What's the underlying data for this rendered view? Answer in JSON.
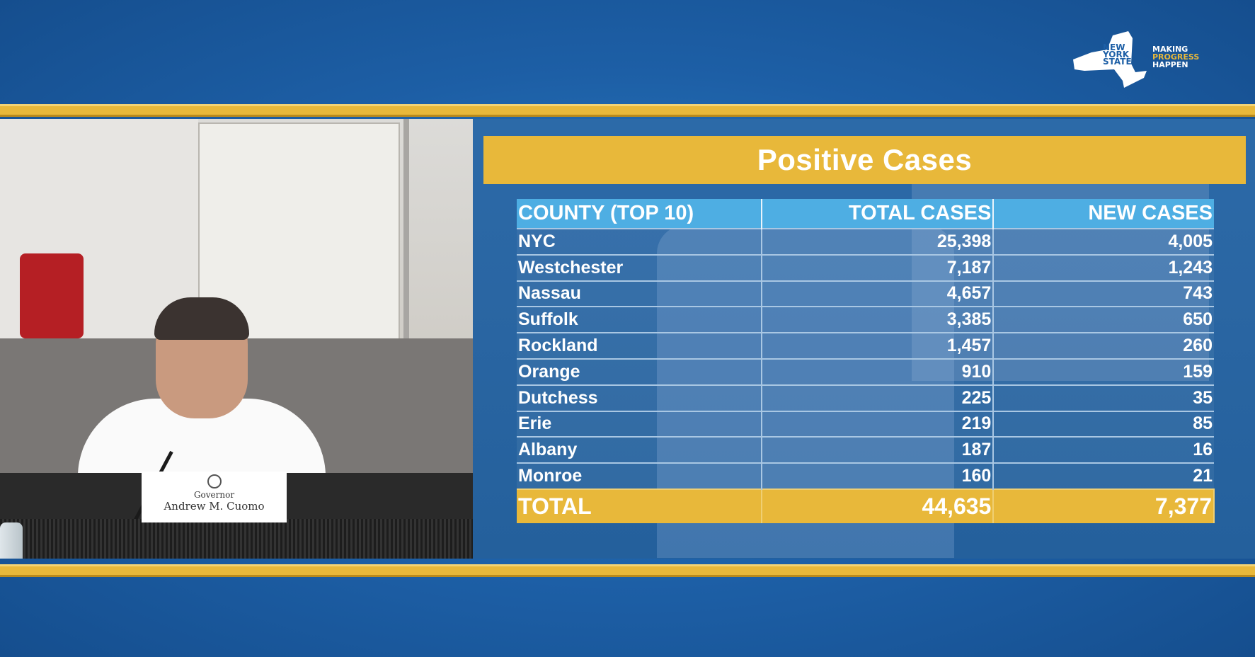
{
  "logo": {
    "state_lines": [
      "NEW",
      "YORK",
      "STATE"
    ],
    "tagline": [
      "MAKING",
      "PROGRESS",
      "HAPPEN"
    ]
  },
  "nameplate": {
    "title": "Governor",
    "name": "Andrew M. Cuomo"
  },
  "slide": {
    "title": "Positive Cases",
    "headers": [
      "COUNTY (TOP 10)",
      "TOTAL CASES",
      "NEW CASES"
    ],
    "rows": [
      {
        "county": "NYC",
        "total": "25,398",
        "new": "4,005"
      },
      {
        "county": "Westchester",
        "total": "7,187",
        "new": "1,243"
      },
      {
        "county": "Nassau",
        "total": "4,657",
        "new": "743"
      },
      {
        "county": "Suffolk",
        "total": "3,385",
        "new": "650"
      },
      {
        "county": "Rockland",
        "total": "1,457",
        "new": "260"
      },
      {
        "county": "Orange",
        "total": "910",
        "new": "159"
      },
      {
        "county": "Dutchess",
        "total": "225",
        "new": "35"
      },
      {
        "county": "Erie",
        "total": "219",
        "new": "85"
      },
      {
        "county": "Albany",
        "total": "187",
        "new": "16"
      },
      {
        "county": "Monroe",
        "total": "160",
        "new": "21"
      }
    ],
    "total": {
      "label": "TOTAL",
      "total": "44,635",
      "new": "7,377"
    }
  },
  "colors": {
    "background_blue": "#1d5fa6",
    "gold": "#e8b83a",
    "header_blue": "#4eaee3"
  }
}
